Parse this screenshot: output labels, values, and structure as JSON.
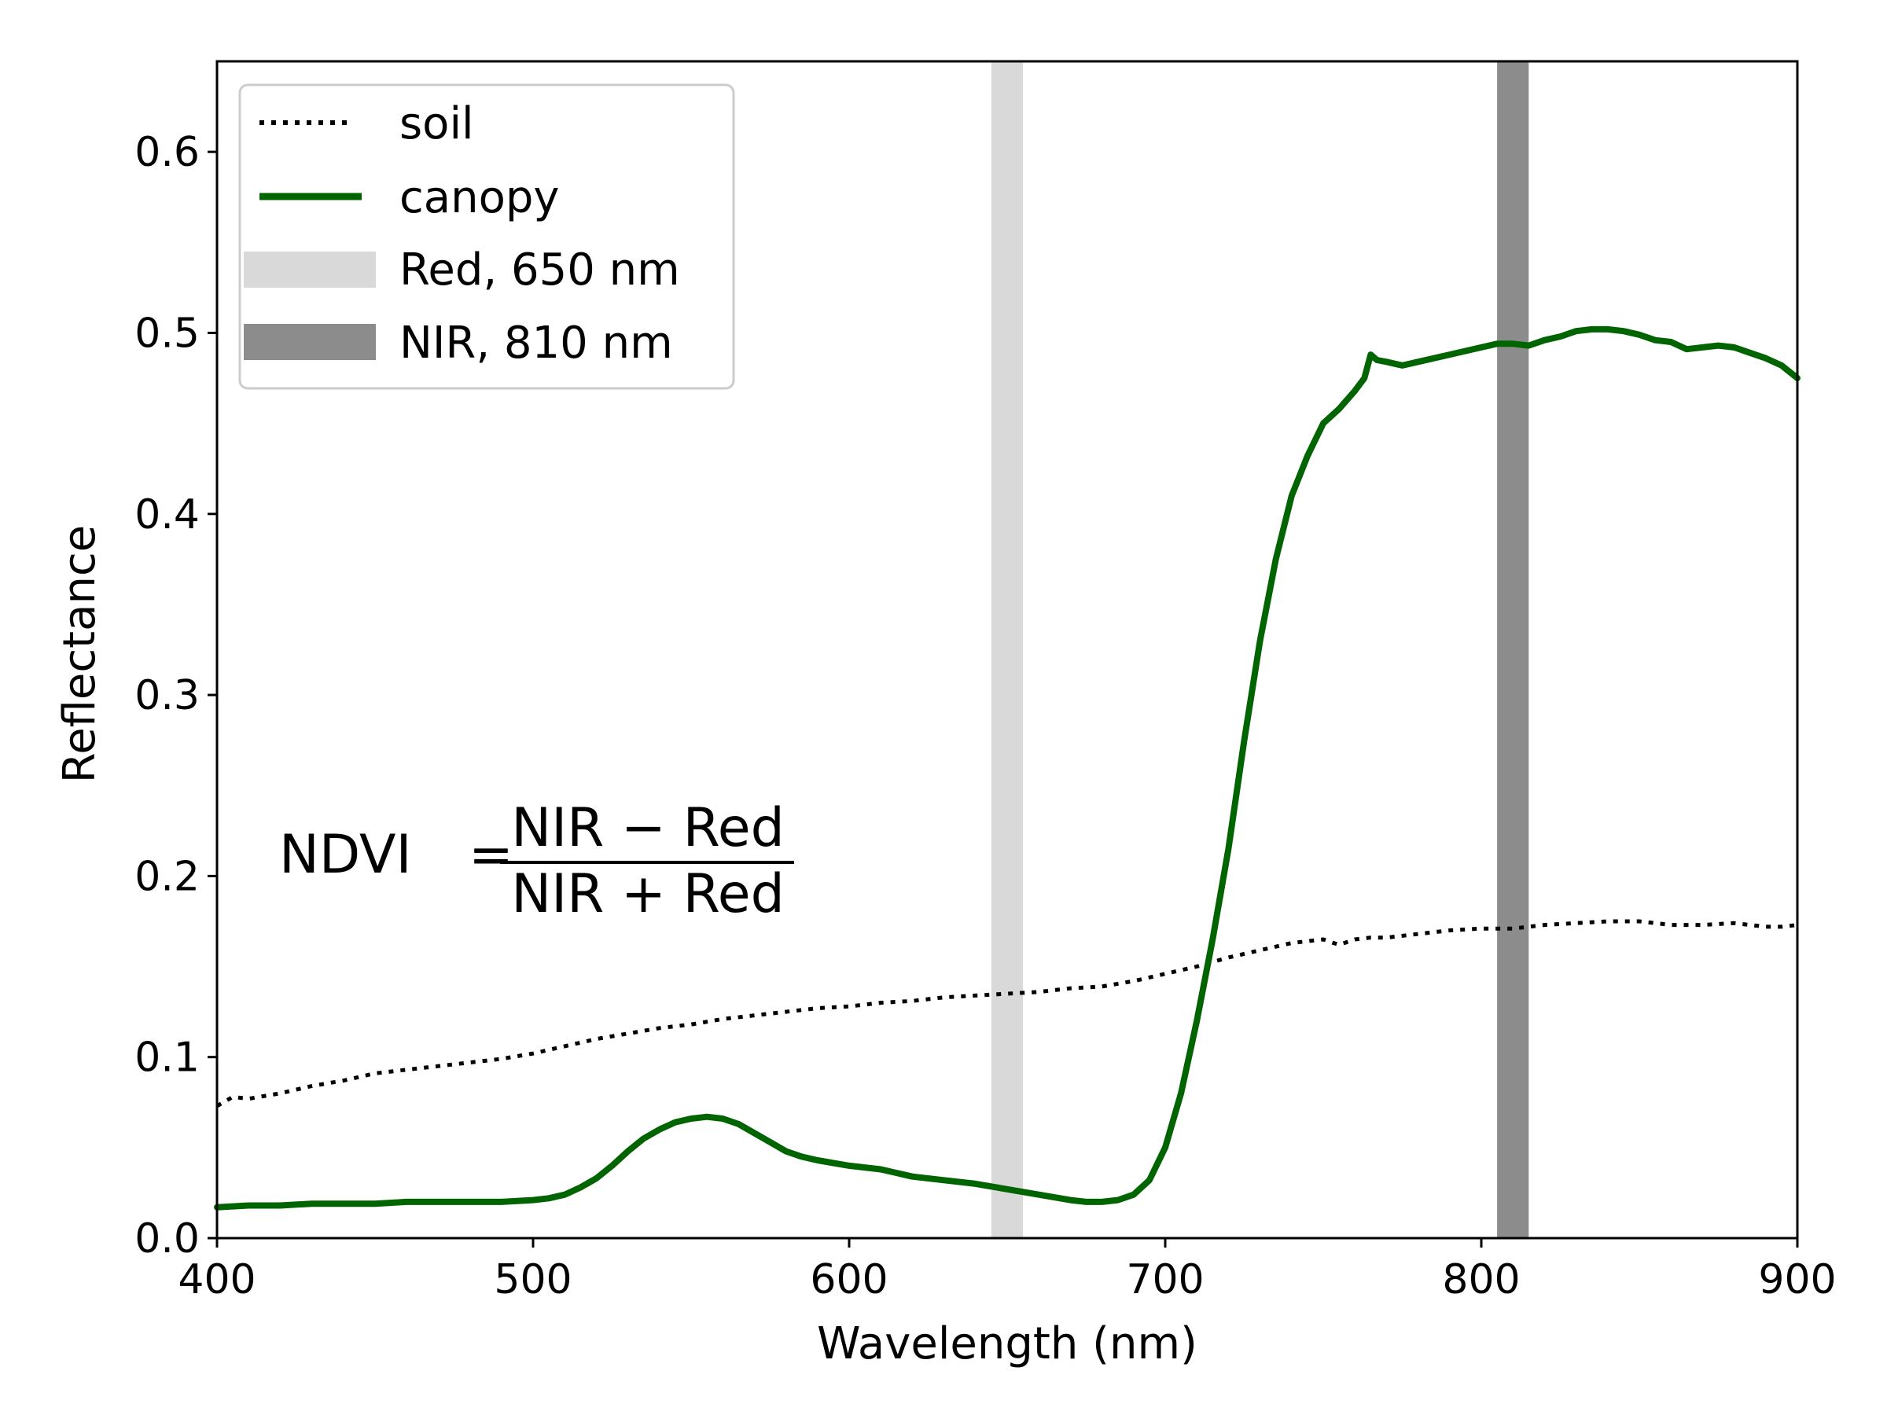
{
  "chart_data": {
    "type": "line",
    "xlabel": "Wavelength (nm)",
    "ylabel": "Reflectance",
    "xlim": [
      400,
      900
    ],
    "ylim": [
      0,
      0.65
    ],
    "xticks": [
      "400",
      "500",
      "600",
      "700",
      "800",
      "900"
    ],
    "yticks": [
      "0.0",
      "0.1",
      "0.2",
      "0.3",
      "0.4",
      "0.5",
      "0.6"
    ],
    "grid": false,
    "legend_position": "top-left",
    "formula": {
      "lhs": "NDVI",
      "equals": "=",
      "numerator": "NIR − Red",
      "denominator": "NIR + Red"
    },
    "bands": [
      {
        "name": "Red, 650 nm",
        "x_from": 645,
        "x_to": 655,
        "color": "#d9d9d9"
      },
      {
        "name": "NIR, 810 nm",
        "x_from": 805,
        "x_to": 815,
        "color": "#8c8c8c"
      }
    ],
    "series": [
      {
        "name": "soil",
        "style": "dotted",
        "color": "#000000",
        "x": [
          400,
          405,
          410,
          420,
          430,
          440,
          450,
          460,
          470,
          480,
          490,
          500,
          510,
          520,
          530,
          540,
          550,
          560,
          570,
          580,
          590,
          600,
          610,
          620,
          630,
          640,
          650,
          660,
          670,
          680,
          690,
          700,
          710,
          720,
          730,
          740,
          750,
          755,
          760,
          765,
          770,
          780,
          790,
          800,
          810,
          820,
          830,
          840,
          850,
          860,
          870,
          880,
          890,
          895,
          900
        ],
        "values": [
          0.073,
          0.078,
          0.077,
          0.08,
          0.084,
          0.087,
          0.091,
          0.093,
          0.095,
          0.097,
          0.099,
          0.102,
          0.106,
          0.11,
          0.113,
          0.116,
          0.118,
          0.121,
          0.123,
          0.125,
          0.127,
          0.128,
          0.13,
          0.131,
          0.133,
          0.134,
          0.135,
          0.136,
          0.138,
          0.139,
          0.142,
          0.146,
          0.15,
          0.155,
          0.159,
          0.163,
          0.165,
          0.162,
          0.165,
          0.166,
          0.166,
          0.168,
          0.17,
          0.171,
          0.171,
          0.173,
          0.174,
          0.175,
          0.175,
          0.173,
          0.173,
          0.174,
          0.172,
          0.172,
          0.173
        ]
      },
      {
        "name": "canopy",
        "style": "solid",
        "color": "#006400",
        "x": [
          400,
          410,
          420,
          430,
          440,
          450,
          460,
          470,
          480,
          490,
          500,
          505,
          510,
          515,
          520,
          525,
          530,
          535,
          540,
          545,
          550,
          555,
          560,
          565,
          570,
          575,
          580,
          585,
          590,
          600,
          610,
          620,
          630,
          640,
          650,
          660,
          670,
          675,
          680,
          685,
          690,
          695,
          700,
          705,
          710,
          715,
          720,
          725,
          730,
          735,
          740,
          745,
          750,
          755,
          760,
          763,
          765,
          767,
          770,
          775,
          780,
          790,
          800,
          805,
          810,
          815,
          820,
          825,
          830,
          835,
          840,
          845,
          850,
          855,
          860,
          865,
          870,
          875,
          880,
          885,
          890,
          895,
          900
        ],
        "values": [
          0.017,
          0.018,
          0.018,
          0.019,
          0.019,
          0.019,
          0.02,
          0.02,
          0.02,
          0.02,
          0.021,
          0.022,
          0.024,
          0.028,
          0.033,
          0.04,
          0.048,
          0.055,
          0.06,
          0.064,
          0.066,
          0.067,
          0.066,
          0.063,
          0.058,
          0.053,
          0.048,
          0.045,
          0.043,
          0.04,
          0.038,
          0.034,
          0.032,
          0.03,
          0.027,
          0.024,
          0.021,
          0.02,
          0.02,
          0.021,
          0.024,
          0.032,
          0.05,
          0.08,
          0.12,
          0.165,
          0.215,
          0.275,
          0.33,
          0.375,
          0.41,
          0.432,
          0.45,
          0.458,
          0.468,
          0.475,
          0.488,
          0.485,
          0.484,
          0.482,
          0.484,
          0.488,
          0.492,
          0.494,
          0.494,
          0.493,
          0.496,
          0.498,
          0.501,
          0.502,
          0.502,
          0.501,
          0.499,
          0.496,
          0.495,
          0.491,
          0.492,
          0.493,
          0.492,
          0.489,
          0.486,
          0.482,
          0.475
        ]
      }
    ]
  }
}
